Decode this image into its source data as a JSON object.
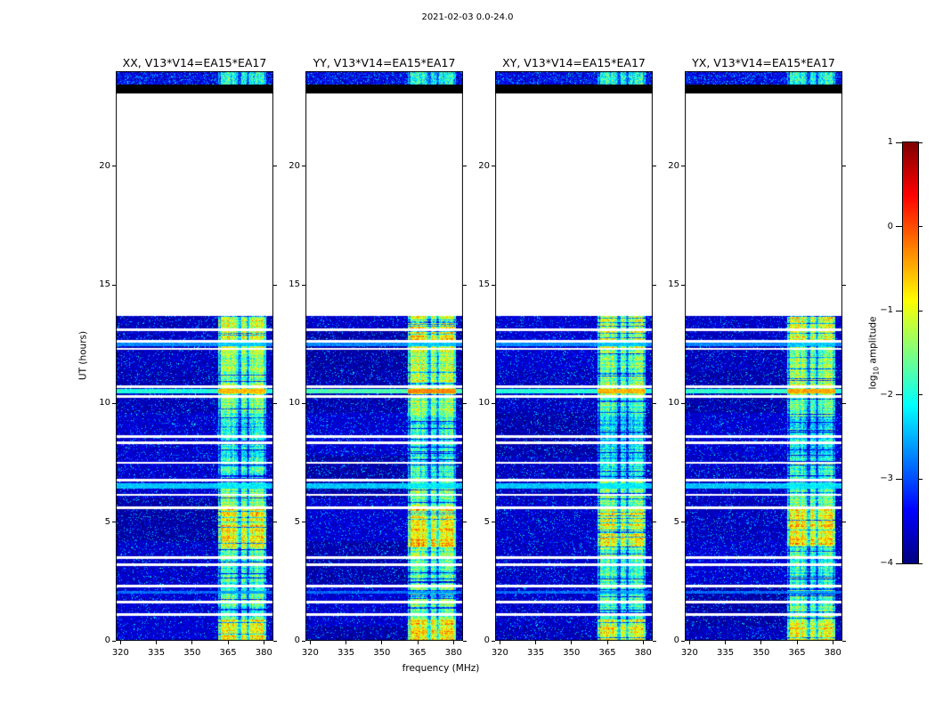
{
  "figure_title": "2021-02-03 0.0-24.0",
  "chart_data": {
    "type": "heatmap",
    "description": "Four-panel radio-interferometry dynamic spectrum (amplitude waterfall) for baseline V13*V14=EA15*EA17 in polarizations XX, YY, XY, YX; jet colormap of log10 amplitude vs frequency and UT time.",
    "panels": [
      {
        "pol": "XX",
        "title": "XX, V13*V14=EA15*EA17"
      },
      {
        "pol": "YY",
        "title": "YY, V13*V14=EA15*EA17"
      },
      {
        "pol": "XY",
        "title": "XY, V13*V14=EA15*EA17"
      },
      {
        "pol": "YX",
        "title": "YX, V13*V14=EA15*EA17"
      }
    ],
    "xlabel": "frequency (MHz)",
    "ylabel": "UT (hours)",
    "xlim": [
      318,
      384
    ],
    "ylim": [
      0,
      24
    ],
    "x_tick_values": [
      320,
      335,
      350,
      365,
      380
    ],
    "x_tick_labels": [
      "320",
      "335",
      "350",
      "365",
      "380"
    ],
    "y_tick_values": [
      0,
      5,
      10,
      15,
      20
    ],
    "y_tick_labels": [
      "0",
      "5",
      "10",
      "15",
      "20"
    ],
    "colorbar": {
      "label_pre": "log",
      "label_sub": "10",
      "label_post": " amplitude",
      "colormap": "jet",
      "vmin": -4,
      "vmax": 1,
      "tick_values": [
        1,
        0,
        -1,
        -2,
        -3,
        -4
      ],
      "tick_labels": [
        "1",
        "0",
        "−1",
        "−2",
        "−3",
        "−4"
      ]
    },
    "content": {
      "noise_block_hours": [
        0,
        13.7
      ],
      "noise_floor_level": -3.7,
      "empty_hours": [
        13.7,
        23.07
      ],
      "black_bar_hours": [
        23.07,
        23.45
      ],
      "top_strip_hours": [
        23.45,
        24.0
      ],
      "rfi_band_mhz": [
        361,
        380.5
      ],
      "scan_gap_hours": [
        1.12,
        1.64,
        2.32,
        3.22,
        3.52,
        5.62,
        6.15,
        6.78,
        7.5,
        8.35,
        8.62,
        10.28,
        10.72,
        12.3,
        12.63,
        13.12
      ],
      "scan_gap_halfwidth_hours": 0.055,
      "band_profile": [
        {
          "t0": 0.0,
          "t1": 0.9,
          "level": -1.25
        },
        {
          "t0": 0.9,
          "t1": 2.35,
          "level": -2.0
        },
        {
          "t0": 2.35,
          "t1": 3.55,
          "level": -2.2
        },
        {
          "t0": 3.55,
          "t1": 3.95,
          "level": -1.9
        },
        {
          "t0": 3.95,
          "t1": 5.6,
          "level": -1.15
        },
        {
          "t0": 5.6,
          "t1": 6.8,
          "level": -1.9
        },
        {
          "t0": 6.8,
          "t1": 7.5,
          "level": -2.3
        },
        {
          "t0": 7.5,
          "t1": 9.4,
          "level": -2.45
        },
        {
          "t0": 9.4,
          "t1": 10.4,
          "level": -1.9
        },
        {
          "t0": 10.4,
          "t1": 12.3,
          "level": -1.7
        },
        {
          "t0": 12.3,
          "t1": 13.7,
          "level": -1.35
        }
      ],
      "bright_rows": [
        {
          "hours": [
            10.42,
            10.62
          ],
          "level_in_band": -0.55,
          "level_outside": -2.0,
          "panel_level_adjust": [
            0,
            0.25,
            0.05,
            0.1
          ],
          "note": "orange RFI row"
        },
        {
          "hours": [
            6.42,
            6.62
          ],
          "level_in_band": -2.2,
          "level_outside": -2.4,
          "panel_level_adjust": [
            0,
            0,
            0,
            0
          ],
          "note": "bright cyan row"
        },
        {
          "hours": [
            12.42,
            12.58
          ],
          "level_in_band": -2.4,
          "level_outside": -2.7,
          "panel_level_adjust": [
            0,
            0,
            0,
            0
          ],
          "note": "cyan row"
        },
        {
          "hours": [
            2.0,
            2.1
          ],
          "level_in_band": -2.6,
          "level_outside": -2.85,
          "panel_level_adjust": [
            0,
            0,
            0,
            0
          ],
          "note": "faint cyan row"
        }
      ],
      "panel_band_level_adjust": [
        0,
        0.12,
        -0.08,
        0.0
      ]
    }
  }
}
